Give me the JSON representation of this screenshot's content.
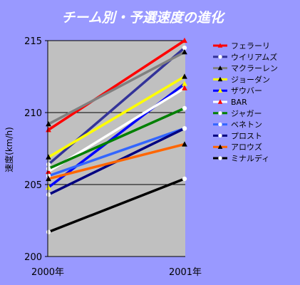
{
  "chart_data": {
    "type": "line",
    "title": "チーム別・予選速度の進化",
    "xlabel": "",
    "ylabel": "速度(km/h)",
    "categories": [
      "2000年",
      "2001年"
    ],
    "ylim": [
      200,
      215
    ],
    "yticks": [
      200,
      205,
      210,
      215
    ],
    "grid": true,
    "legend_position": "right",
    "colors": {
      "background": "#9999ff",
      "plot_area": "#c0c0c0"
    },
    "series": [
      {
        "name": "フェラーリ",
        "color": "#ff0000",
        "marker": "triangle",
        "marker_color": "#ff0000",
        "values": [
          208.8,
          215.0
        ]
      },
      {
        "name": "ウイリアムズ",
        "color": "#333399",
        "marker": "circle",
        "marker_color": "#ffffff",
        "values": [
          206.4,
          214.5
        ]
      },
      {
        "name": "マクラーレン",
        "color": "#808080",
        "marker": "triangle",
        "marker_color": "#000000",
        "values": [
          209.2,
          214.2
        ]
      },
      {
        "name": "ジョーダン",
        "color": "#ffff00",
        "marker": "triangle",
        "marker_color": "#000000",
        "values": [
          206.9,
          212.5
        ]
      },
      {
        "name": "ザウバー",
        "color": "#0000ff",
        "marker": "triangle",
        "marker_color": "#ffff00",
        "values": [
          204.8,
          212.0
        ]
      },
      {
        "name": "BAR",
        "color": "#ffffff",
        "marker": "triangle",
        "marker_color": "#ff0000",
        "values": [
          205.9,
          211.7
        ]
      },
      {
        "name": "ジャガー",
        "color": "#008000",
        "marker": "circle",
        "marker_color": "#ffffff",
        "values": [
          206.1,
          210.3
        ]
      },
      {
        "name": "ベネトン",
        "color": "#3366ff",
        "marker": "circle",
        "marker_color": "#ffffff",
        "values": [
          205.6,
          208.9
        ]
      },
      {
        "name": "プロスト",
        "color": "#000080",
        "marker": "circle",
        "marker_color": "#ffffff",
        "values": [
          204.3,
          208.9
        ]
      },
      {
        "name": "アロウズ",
        "color": "#ff6600",
        "marker": "triangle",
        "marker_color": "#000000",
        "values": [
          205.4,
          207.8
        ]
      },
      {
        "name": "ミナルディ",
        "color": "#000000",
        "marker": "circle",
        "marker_color": "#ffffff",
        "values": [
          201.7,
          205.4
        ]
      }
    ]
  }
}
